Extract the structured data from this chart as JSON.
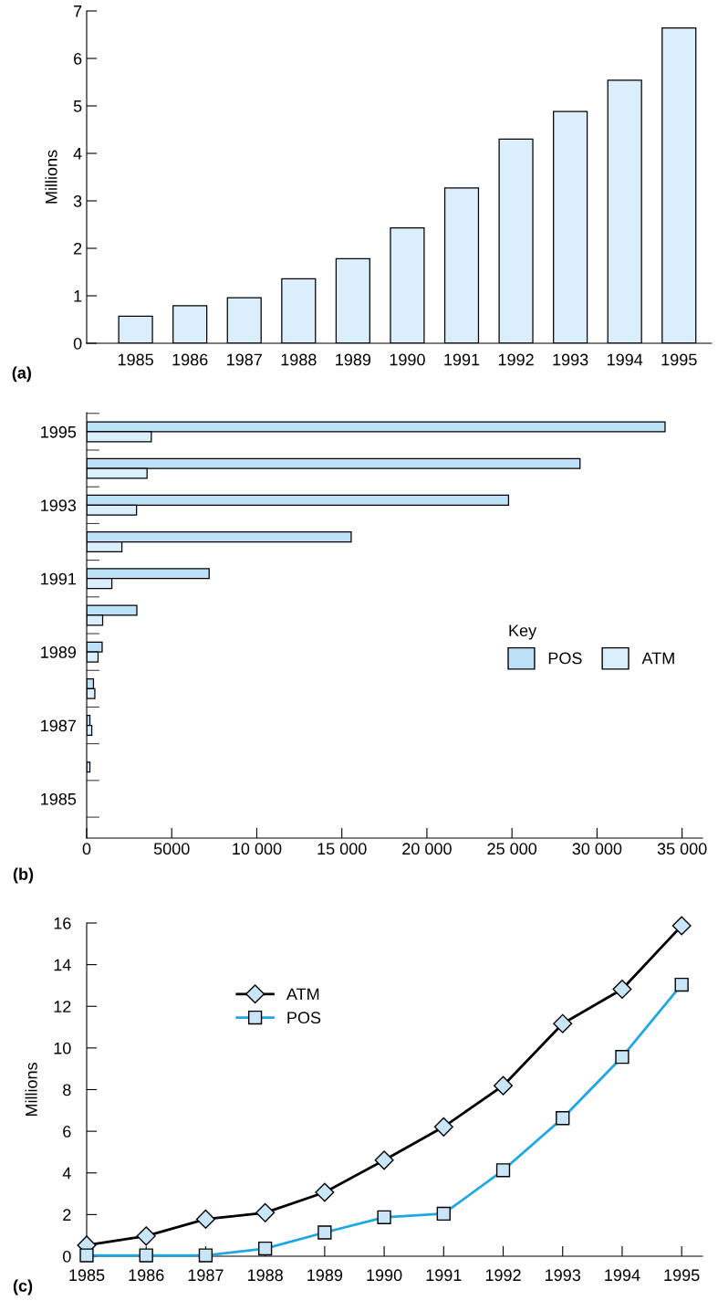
{
  "chart_data": [
    {
      "type": "bar",
      "categories": [
        "1985",
        "1986",
        "1987",
        "1988",
        "1989",
        "1990",
        "1991",
        "1992",
        "1993",
        "1994",
        "1995"
      ],
      "values": [
        0.57,
        0.79,
        0.96,
        1.36,
        1.78,
        2.43,
        3.27,
        4.3,
        4.88,
        5.54,
        6.64
      ],
      "color": "#dbeefb",
      "ylim": [
        0,
        7
      ],
      "yticks": [
        0,
        1,
        2,
        3,
        4,
        5,
        6,
        7
      ],
      "ylabel": "Millions",
      "grid": false,
      "annotations": [
        "(a)"
      ]
    },
    {
      "type": "bar",
      "orientation": "horizontal",
      "categories": [
        "1995",
        null,
        "1993",
        null,
        "1991",
        null,
        "1989",
        null,
        "1987",
        null,
        "1985"
      ],
      "series": [
        {
          "name": "POS",
          "color": "#bde2f7",
          "values": [
            34000,
            29000,
            24800,
            15550,
            7200,
            2950,
            910,
            400,
            190,
            null,
            null
          ]
        },
        {
          "name": "ATM",
          "color": "#dbeefb",
          "values": [
            3800,
            3550,
            2930,
            2070,
            1480,
            940,
            670,
            480,
            300,
            190,
            null
          ]
        }
      ],
      "xlim": [
        0,
        36200
      ],
      "xticks": [
        0,
        5000,
        {
          "value": 10000,
          "label": "10 000"
        },
        {
          "value": 15000,
          "label": "15 000"
        },
        {
          "value": 20000,
          "label": "20 000"
        },
        {
          "value": 25000,
          "label": "25 000"
        },
        {
          "value": 30000,
          "label": "30 000"
        },
        {
          "value": 35000,
          "label": "35 000"
        }
      ],
      "legend": "center right",
      "legend_title": "Key",
      "grid": false,
      "annotations": [
        "(b)"
      ]
    },
    {
      "type": "line",
      "x": [
        1985,
        1986,
        1987,
        1988,
        1989,
        1990,
        1991,
        1992,
        1993,
        1994,
        1995
      ],
      "series": [
        {
          "name": "ATM",
          "color": "#000000",
          "marker": "diamond",
          "values": [
            0.53,
            0.97,
            1.78,
            2.09,
            3.07,
            4.61,
            6.21,
            8.19,
            11.17,
            12.82,
            15.87
          ]
        },
        {
          "name": "POS",
          "color": "#1ea7e1",
          "marker": "square",
          "values": [
            0.04,
            0.04,
            0.04,
            0.37,
            1.14,
            1.87,
            2.04,
            4.13,
            6.63,
            9.57,
            13.04
          ]
        }
      ],
      "xlim": [
        1985,
        1995.35
      ],
      "xticks": [
        1985,
        1986,
        1987,
        1988,
        1989,
        1990,
        1991,
        1992,
        1993,
        1994,
        1995
      ],
      "ylim": [
        0,
        16
      ],
      "yticks": [
        0,
        2,
        4,
        6,
        8,
        10,
        12,
        14,
        16
      ],
      "ylabel": "Millions",
      "legend": "top left",
      "grid": false,
      "annotations": [
        "(c)"
      ]
    }
  ]
}
